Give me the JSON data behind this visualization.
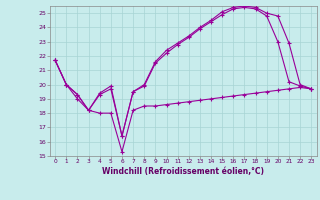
{
  "xlabel": "Windchill (Refroidissement éolien,°C)",
  "background_color": "#c8ecec",
  "grid_color": "#a8d4d4",
  "line_color": "#990099",
  "xlim": [
    -0.5,
    23.5
  ],
  "ylim": [
    15,
    25.5
  ],
  "yticks": [
    15,
    16,
    17,
    18,
    19,
    20,
    21,
    22,
    23,
    24,
    25
  ],
  "xticks": [
    0,
    1,
    2,
    3,
    4,
    5,
    6,
    7,
    8,
    9,
    10,
    11,
    12,
    13,
    14,
    15,
    16,
    17,
    18,
    19,
    20,
    21,
    22,
    23
  ],
  "line1_x": [
    0,
    1,
    2,
    3,
    4,
    5,
    6,
    7,
    8,
    9,
    10,
    11,
    12,
    13,
    14,
    15,
    16,
    17,
    18,
    19,
    20,
    21,
    22,
    23
  ],
  "line1_y": [
    21.7,
    20.0,
    19.0,
    18.2,
    18.0,
    18.0,
    15.3,
    18.2,
    18.5,
    18.5,
    18.6,
    18.7,
    18.8,
    18.9,
    19.0,
    19.1,
    19.2,
    19.3,
    19.4,
    19.5,
    19.6,
    19.7,
    19.8,
    19.7
  ],
  "line2_x": [
    0,
    1,
    2,
    3,
    4,
    5,
    6,
    7,
    8,
    9,
    10,
    11,
    12,
    13,
    14,
    15,
    16,
    17,
    18,
    19,
    20,
    21,
    22,
    23
  ],
  "line2_y": [
    21.7,
    20.0,
    19.3,
    18.2,
    19.3,
    19.7,
    16.4,
    19.5,
    19.9,
    21.5,
    22.2,
    22.8,
    23.3,
    23.9,
    24.4,
    24.9,
    25.3,
    25.4,
    25.3,
    24.8,
    23.0,
    20.2,
    19.9,
    19.7
  ],
  "line3_x": [
    0,
    1,
    2,
    3,
    4,
    5,
    6,
    7,
    8,
    9,
    10,
    11,
    12,
    13,
    14,
    15,
    16,
    17,
    18,
    19,
    20,
    21,
    22,
    23
  ],
  "line3_y": [
    21.7,
    20.0,
    19.3,
    18.2,
    19.4,
    19.9,
    16.4,
    19.5,
    20.0,
    21.6,
    22.4,
    22.9,
    23.4,
    24.0,
    24.5,
    25.1,
    25.4,
    25.5,
    25.4,
    25.0,
    24.8,
    22.9,
    20.0,
    19.7
  ]
}
